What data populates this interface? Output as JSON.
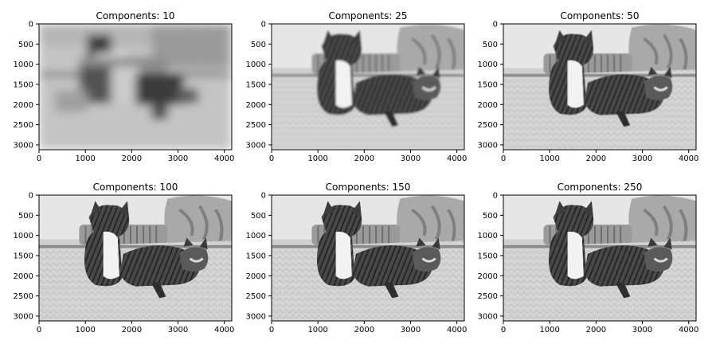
{
  "chart_data": [
    {
      "type": "image",
      "title": "Components: 10",
      "xlim": [
        0,
        4160
      ],
      "ylim": [
        3120,
        0
      ],
      "xticks": [
        0,
        1000,
        2000,
        3000,
        4000
      ],
      "yticks": [
        0,
        500,
        1000,
        1500,
        2000,
        2500,
        3000
      ]
    },
    {
      "type": "image",
      "title": "Components: 25",
      "xlim": [
        0,
        4160
      ],
      "ylim": [
        3120,
        0
      ],
      "xticks": [
        0,
        1000,
        2000,
        3000,
        4000
      ],
      "yticks": [
        0,
        500,
        1000,
        1500,
        2000,
        2500,
        3000
      ]
    },
    {
      "type": "image",
      "title": "Components: 50",
      "xlim": [
        0,
        4160
      ],
      "ylim": [
        3120,
        0
      ],
      "xticks": [
        0,
        1000,
        2000,
        3000,
        4000
      ],
      "yticks": [
        0,
        500,
        1000,
        1500,
        2000,
        2500,
        3000
      ]
    },
    {
      "type": "image",
      "title": "Components: 100",
      "xlim": [
        0,
        4160
      ],
      "ylim": [
        3120,
        0
      ],
      "xticks": [
        0,
        1000,
        2000,
        3000,
        4000
      ],
      "yticks": [
        0,
        500,
        1000,
        1500,
        2000,
        2500,
        3000
      ]
    },
    {
      "type": "image",
      "title": "Components: 150",
      "xlim": [
        0,
        4160
      ],
      "ylim": [
        3120,
        0
      ],
      "xticks": [
        0,
        1000,
        2000,
        3000,
        4000
      ],
      "yticks": [
        0,
        500,
        1000,
        1500,
        2000,
        2500,
        3000
      ]
    },
    {
      "type": "image",
      "title": "Components: 250",
      "xlim": [
        0,
        4160
      ],
      "ylim": [
        3120,
        0
      ],
      "xticks": [
        0,
        1000,
        2000,
        3000,
        4000
      ],
      "yticks": [
        0,
        500,
        1000,
        1500,
        2000,
        2500,
        3000
      ]
    }
  ]
}
